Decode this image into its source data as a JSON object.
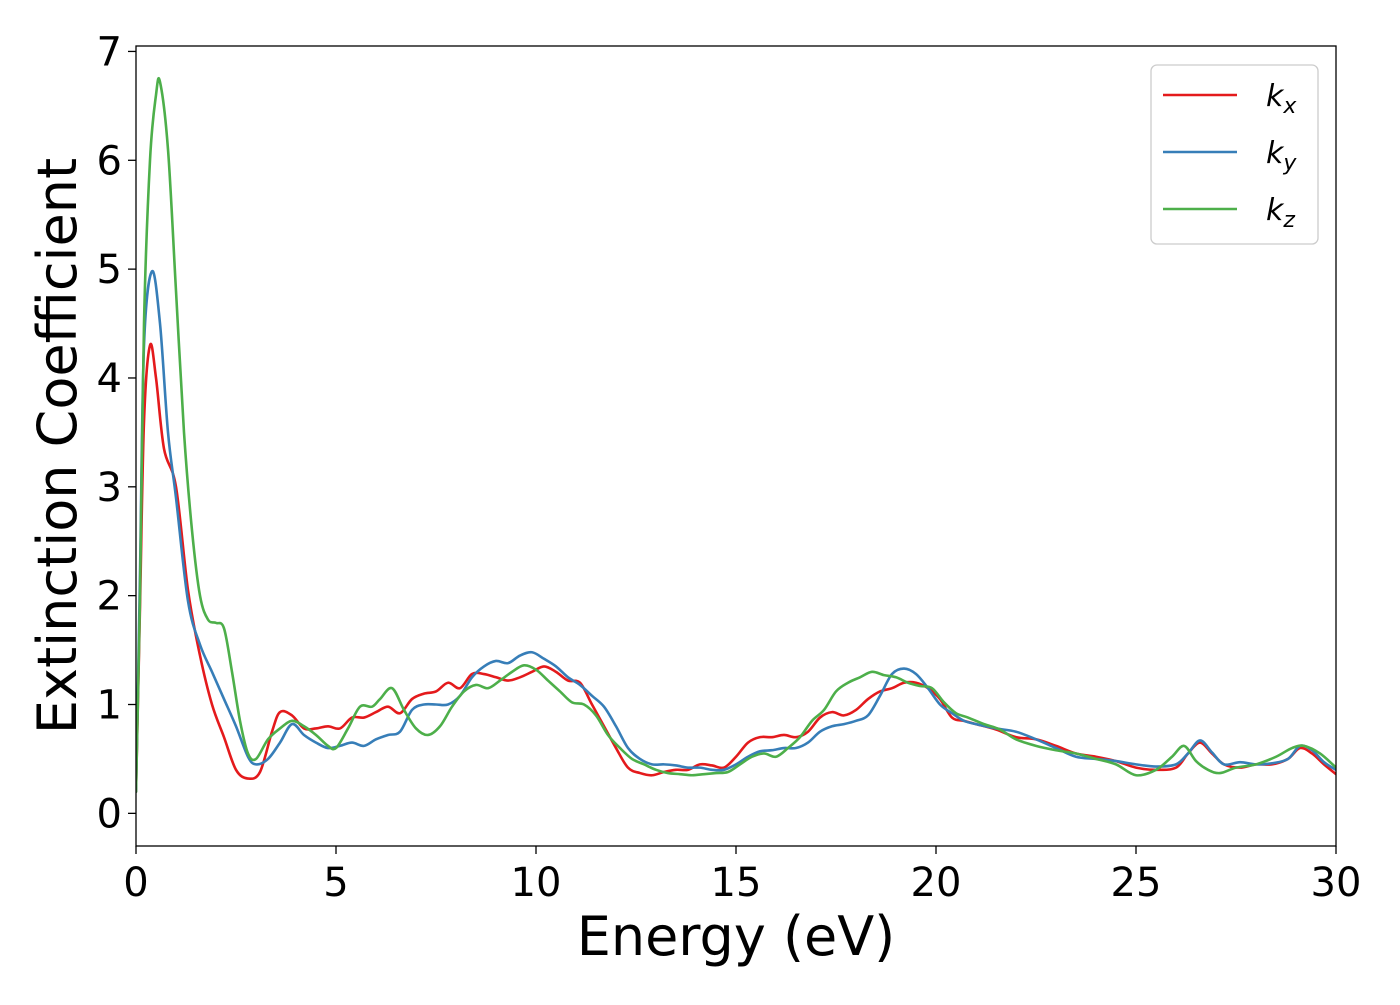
{
  "chart_data": {
    "type": "line",
    "title": "",
    "xlabel": "Energy (eV)",
    "ylabel": "Extinction Coefficient",
    "xlim": [
      0,
      30
    ],
    "ylim": [
      -0.3,
      7.05
    ],
    "xticks": [
      0,
      5,
      10,
      15,
      20,
      25,
      30
    ],
    "yticks": [
      0,
      1,
      2,
      3,
      4,
      5,
      6,
      7
    ],
    "grid": false,
    "legend_position": "top-right",
    "series": [
      {
        "name": "k_x",
        "name_base": "k",
        "name_sub": "x",
        "color": "#e41a1c",
        "x": [
          0,
          0.1,
          0.2,
          0.35,
          0.5,
          0.7,
          1.0,
          1.3,
          1.6,
          1.9,
          2.2,
          2.5,
          2.8,
          3.1,
          3.4,
          3.6,
          3.9,
          4.2,
          4.5,
          4.8,
          5.1,
          5.4,
          5.7,
          6.0,
          6.3,
          6.6,
          6.9,
          7.2,
          7.5,
          7.8,
          8.1,
          8.4,
          8.7,
          9.0,
          9.3,
          9.6,
          9.9,
          10.2,
          10.5,
          10.8,
          11.1,
          11.4,
          11.7,
          12.0,
          12.3,
          12.6,
          12.9,
          13.2,
          13.5,
          13.8,
          14.1,
          14.4,
          14.7,
          15.0,
          15.3,
          15.6,
          15.9,
          16.2,
          16.5,
          16.8,
          17.1,
          17.4,
          17.7,
          18.0,
          18.3,
          18.6,
          18.9,
          19.2,
          19.5,
          19.8,
          20.1,
          20.4,
          20.7,
          21.0,
          21.5,
          22.0,
          22.5,
          23.0,
          23.5,
          24.0,
          24.5,
          25.0,
          25.5,
          26.0,
          26.3,
          26.6,
          26.9,
          27.2,
          27.6,
          28.0,
          28.4,
          28.8,
          29.1,
          29.4,
          29.7,
          30.0
        ],
        "y": [
          0.2,
          1.9,
          3.6,
          4.3,
          4.0,
          3.35,
          3.0,
          2.05,
          1.45,
          1.0,
          0.7,
          0.4,
          0.32,
          0.38,
          0.75,
          0.93,
          0.9,
          0.78,
          0.78,
          0.8,
          0.78,
          0.88,
          0.88,
          0.93,
          0.98,
          0.92,
          1.05,
          1.1,
          1.12,
          1.2,
          1.15,
          1.28,
          1.28,
          1.25,
          1.22,
          1.25,
          1.3,
          1.35,
          1.3,
          1.22,
          1.2,
          1.0,
          0.8,
          0.6,
          0.42,
          0.37,
          0.35,
          0.38,
          0.4,
          0.4,
          0.45,
          0.44,
          0.42,
          0.52,
          0.65,
          0.7,
          0.7,
          0.72,
          0.7,
          0.75,
          0.88,
          0.93,
          0.9,
          0.95,
          1.05,
          1.12,
          1.15,
          1.2,
          1.2,
          1.15,
          1.05,
          0.88,
          0.85,
          0.82,
          0.77,
          0.7,
          0.68,
          0.62,
          0.55,
          0.52,
          0.48,
          0.42,
          0.4,
          0.42,
          0.55,
          0.65,
          0.55,
          0.45,
          0.42,
          0.45,
          0.45,
          0.5,
          0.6,
          0.55,
          0.45,
          0.36
        ]
      },
      {
        "name": "k_y",
        "name_base": "k",
        "name_sub": "y",
        "color": "#377eb8",
        "x": [
          0,
          0.1,
          0.2,
          0.4,
          0.6,
          0.8,
          1.0,
          1.3,
          1.6,
          1.9,
          2.2,
          2.5,
          2.8,
          3.0,
          3.3,
          3.6,
          3.9,
          4.2,
          4.5,
          4.8,
          5.1,
          5.4,
          5.7,
          6.0,
          6.3,
          6.6,
          6.9,
          7.2,
          7.5,
          7.8,
          8.1,
          8.4,
          8.7,
          9.0,
          9.3,
          9.6,
          9.9,
          10.2,
          10.5,
          10.8,
          11.1,
          11.4,
          11.7,
          12.0,
          12.3,
          12.6,
          12.9,
          13.2,
          13.5,
          13.8,
          14.1,
          14.4,
          14.7,
          15.0,
          15.3,
          15.6,
          15.9,
          16.2,
          16.5,
          16.8,
          17.1,
          17.4,
          17.7,
          18.0,
          18.3,
          18.6,
          18.9,
          19.2,
          19.5,
          19.8,
          20.1,
          20.4,
          20.7,
          21.0,
          21.5,
          22.0,
          22.5,
          23.0,
          23.5,
          24.0,
          24.5,
          25.0,
          25.5,
          26.0,
          26.3,
          26.6,
          26.9,
          27.2,
          27.6,
          28.0,
          28.4,
          28.8,
          29.1,
          29.4,
          29.7,
          30.0
        ],
        "y": [
          0.2,
          2.2,
          4.3,
          4.98,
          4.5,
          3.5,
          2.9,
          1.95,
          1.55,
          1.3,
          1.05,
          0.8,
          0.52,
          0.45,
          0.5,
          0.65,
          0.82,
          0.72,
          0.65,
          0.6,
          0.62,
          0.65,
          0.62,
          0.68,
          0.72,
          0.75,
          0.95,
          1.0,
          1.0,
          1.0,
          1.08,
          1.25,
          1.35,
          1.4,
          1.38,
          1.45,
          1.48,
          1.42,
          1.35,
          1.25,
          1.18,
          1.08,
          0.98,
          0.8,
          0.6,
          0.5,
          0.45,
          0.45,
          0.44,
          0.42,
          0.42,
          0.4,
          0.4,
          0.45,
          0.52,
          0.57,
          0.58,
          0.6,
          0.6,
          0.65,
          0.75,
          0.8,
          0.82,
          0.85,
          0.9,
          1.08,
          1.28,
          1.33,
          1.28,
          1.15,
          1.0,
          0.92,
          0.85,
          0.82,
          0.78,
          0.75,
          0.68,
          0.6,
          0.52,
          0.5,
          0.48,
          0.45,
          0.43,
          0.45,
          0.55,
          0.67,
          0.56,
          0.45,
          0.47,
          0.45,
          0.46,
          0.5,
          0.62,
          0.58,
          0.47,
          0.4
        ]
      },
      {
        "name": "k_z",
        "name_base": "k",
        "name_sub": "z",
        "color": "#4daf4a",
        "x": [
          0,
          0.1,
          0.2,
          0.35,
          0.5,
          0.6,
          0.8,
          1.0,
          1.2,
          1.4,
          1.6,
          1.8,
          2.0,
          2.2,
          2.4,
          2.6,
          2.8,
          3.0,
          3.3,
          3.6,
          3.9,
          4.2,
          4.5,
          4.8,
          5.0,
          5.3,
          5.6,
          5.9,
          6.1,
          6.4,
          6.7,
          7.0,
          7.3,
          7.6,
          7.9,
          8.2,
          8.5,
          8.8,
          9.1,
          9.4,
          9.7,
          10.0,
          10.3,
          10.6,
          10.9,
          11.2,
          11.5,
          11.8,
          12.1,
          12.4,
          12.7,
          13.0,
          13.3,
          13.6,
          13.9,
          14.2,
          14.5,
          14.8,
          15.1,
          15.4,
          15.7,
          16.0,
          16.3,
          16.6,
          16.9,
          17.2,
          17.5,
          17.8,
          18.1,
          18.4,
          18.7,
          19.0,
          19.3,
          19.6,
          19.9,
          20.2,
          20.5,
          20.8,
          21.2,
          21.6,
          22.0,
          22.5,
          23.0,
          23.5,
          24.0,
          24.5,
          25.0,
          25.5,
          25.9,
          26.2,
          26.5,
          26.8,
          27.1,
          27.5,
          28.0,
          28.5,
          28.9,
          29.2,
          29.6,
          30.0
        ],
        "y": [
          0.2,
          2.0,
          4.5,
          6.0,
          6.6,
          6.72,
          6.1,
          4.8,
          3.5,
          2.6,
          2.0,
          1.78,
          1.75,
          1.7,
          1.3,
          0.85,
          0.55,
          0.5,
          0.68,
          0.78,
          0.85,
          0.8,
          0.72,
          0.62,
          0.6,
          0.78,
          0.98,
          0.98,
          1.05,
          1.15,
          0.95,
          0.78,
          0.72,
          0.8,
          0.98,
          1.12,
          1.18,
          1.15,
          1.22,
          1.3,
          1.36,
          1.32,
          1.22,
          1.12,
          1.02,
          1.0,
          0.9,
          0.72,
          0.6,
          0.5,
          0.45,
          0.4,
          0.37,
          0.36,
          0.35,
          0.36,
          0.37,
          0.38,
          0.45,
          0.52,
          0.55,
          0.52,
          0.6,
          0.7,
          0.85,
          0.95,
          1.12,
          1.2,
          1.25,
          1.3,
          1.27,
          1.25,
          1.2,
          1.17,
          1.15,
          1.02,
          0.92,
          0.88,
          0.82,
          0.77,
          0.68,
          0.62,
          0.58,
          0.55,
          0.5,
          0.45,
          0.35,
          0.4,
          0.52,
          0.62,
          0.48,
          0.4,
          0.37,
          0.42,
          0.45,
          0.52,
          0.6,
          0.62,
          0.55,
          0.42
        ]
      }
    ]
  }
}
